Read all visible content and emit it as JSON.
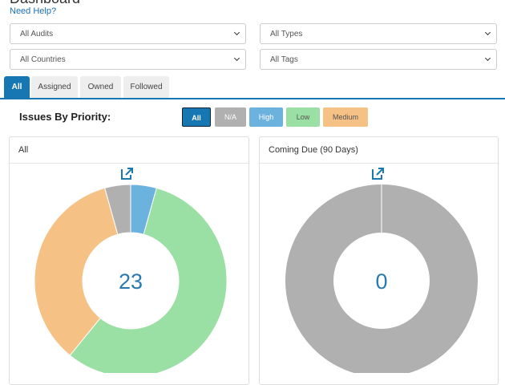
{
  "header": {
    "title": "Dashboard",
    "help": "Need Help?"
  },
  "filters": [
    "All Audits",
    "All Types",
    "All Countries",
    "All Tags"
  ],
  "tabs": [
    "All",
    "Assigned",
    "Owned",
    "Followed"
  ],
  "priority_label": "Issues By Priority:",
  "priority_buttons": [
    {
      "label": "All",
      "color": "#1677b3"
    },
    {
      "label": "N/A",
      "color": "#b0b0b0"
    },
    {
      "label": "High",
      "color": "#6cb2df"
    },
    {
      "label": "Low",
      "color": "#9adfa3"
    },
    {
      "label": "Medium",
      "color": "#f5c184"
    }
  ],
  "panels": [
    {
      "title": "All",
      "total": 23,
      "values": [
        1,
        1,
        13,
        8
      ]
    },
    {
      "title": "Coming Due (90 Days)",
      "total": 0,
      "values": [
        0,
        0,
        0,
        0
      ]
    }
  ]
}
